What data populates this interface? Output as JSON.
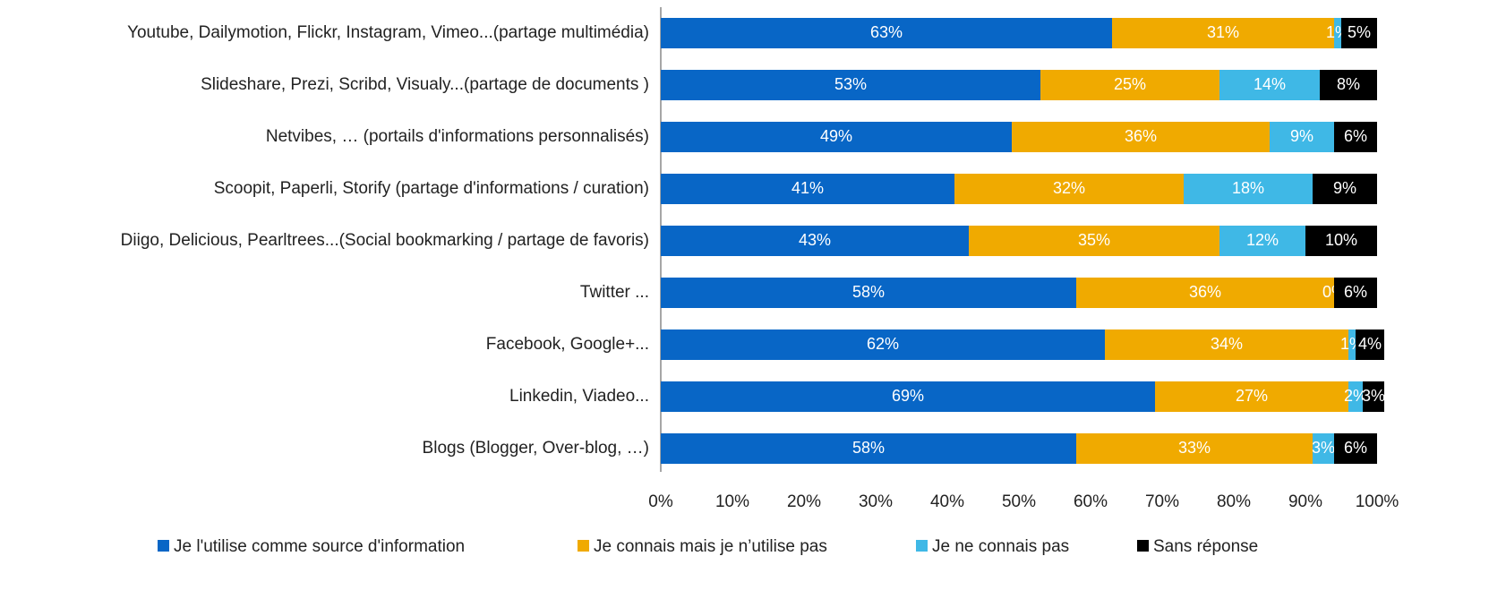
{
  "chart_data": {
    "type": "bar",
    "orientation": "horizontal",
    "stacked": true,
    "categories": [
      "Youtube, Dailymotion, Flickr, Instagram, Vimeo...(partage multimédia)",
      "Slideshare, Prezi, Scribd, Visualy...(partage de documents )",
      "Netvibes, … (portails d'informations personnalisés)",
      "Scoopit, Paperli, Storify (partage d'informations / curation)",
      "Diigo, Delicious, Pearltrees...(Social bookmarking / partage de favoris)",
      "Twitter ...",
      "Facebook, Google+...",
      "Linkedin, Viadeo...",
      "Blogs (Blogger, Over-blog, …)"
    ],
    "series": [
      {
        "name": "Je l'utilise comme source d'information",
        "color": "#0866c6",
        "values": [
          63,
          53,
          49,
          41,
          43,
          58,
          62,
          69,
          58
        ],
        "value_labels": [
          "63%",
          "53%",
          "49%",
          "41%",
          "43%",
          "58%",
          "62%",
          "69%",
          "58%"
        ]
      },
      {
        "name": "Je connais mais je n’utilise pas",
        "color": "#f0aa00",
        "values": [
          31,
          25,
          36,
          32,
          35,
          36,
          34,
          27,
          33
        ],
        "value_labels": [
          "31%",
          "25%",
          "36%",
          "32%",
          "35%",
          "36%",
          "34%",
          "27%",
          "33%"
        ]
      },
      {
        "name": "Je ne connais pas",
        "color": "#3fb8e6",
        "values": [
          1,
          14,
          9,
          18,
          12,
          0,
          1,
          2,
          3
        ],
        "value_labels": [
          "1%",
          "14%",
          "9%",
          "18%",
          "12%",
          "0%",
          "1%",
          "2%",
          "3%"
        ]
      },
      {
        "name": "Sans réponse",
        "color": "#000000",
        "values": [
          5,
          8,
          6,
          9,
          10,
          6,
          4,
          3,
          6
        ],
        "value_labels": [
          "5%",
          "8%",
          "6%",
          "9%",
          "10%",
          "6%",
          "4%",
          "3%",
          "6%"
        ]
      }
    ],
    "xlim": [
      0,
      100
    ],
    "xticks": [
      {
        "value": 0,
        "label": "0%"
      },
      {
        "value": 10,
        "label": "10%"
      },
      {
        "value": 20,
        "label": "20%"
      },
      {
        "value": 30,
        "label": "30%"
      },
      {
        "value": 40,
        "label": "40%"
      },
      {
        "value": 50,
        "label": "50%"
      },
      {
        "value": 60,
        "label": "60%"
      },
      {
        "value": 70,
        "label": "70%"
      },
      {
        "value": 80,
        "label": "80%"
      },
      {
        "value": 90,
        "label": "90%"
      },
      {
        "value": 100,
        "label": "100%"
      }
    ],
    "legend": "bottom"
  }
}
